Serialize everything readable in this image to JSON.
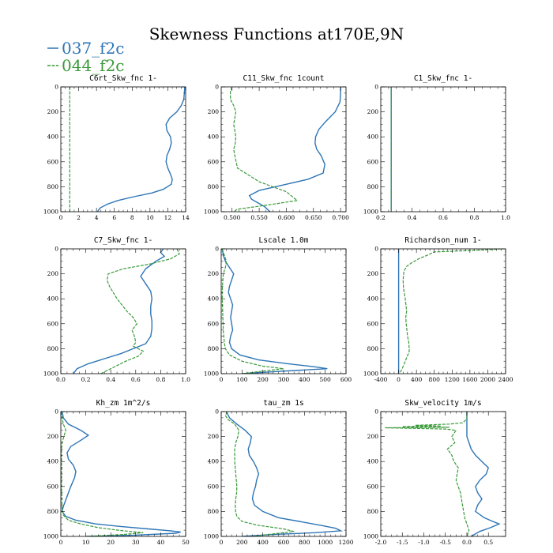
{
  "figure": {
    "title": "Skewness Functions at170E,9N",
    "legend": [
      {
        "name": "037_f2c",
        "color": "#2d75b6"
      },
      {
        "name": "044_f2c",
        "color": "#3a9a3a"
      }
    ]
  },
  "chart_data": [
    {
      "type": "line",
      "title": "C6rt_Skw_fnc   1-",
      "xlim": [
        0,
        14
      ],
      "xticks": [
        0,
        2,
        4,
        6,
        8,
        10,
        12,
        14
      ],
      "xticklabels": [
        "0",
        "2",
        "4",
        "6",
        "8",
        "10",
        "12",
        "14"
      ],
      "ylim": [
        1000,
        0
      ],
      "yticks": [
        0,
        200,
        400,
        600,
        800,
        1000
      ],
      "series": [
        {
          "x": [
            13.9,
            13.85,
            13.8,
            13.5,
            13.0,
            12.2,
            11.8,
            11.9,
            12.3,
            12.4,
            12.2,
            11.9,
            11.8,
            12.0,
            12.3,
            12.5,
            12.4,
            11.5,
            10.2,
            8.2,
            6.4,
            5.2,
            4.4,
            4.1
          ],
          "y": [
            0,
            50,
            100,
            150,
            200,
            250,
            300,
            350,
            400,
            450,
            500,
            550,
            600,
            650,
            700,
            740,
            780,
            820,
            850,
            880,
            910,
            940,
            970,
            1000
          ]
        },
        {
          "x": [
            1,
            1
          ],
          "y": [
            0,
            1000
          ]
        }
      ]
    },
    {
      "type": "line",
      "title": "C11_Skw_fnc   1count",
      "xlim": [
        0.48,
        0.71
      ],
      "xticks": [
        0.5,
        0.55,
        0.6,
        0.65,
        0.7
      ],
      "xticklabels": [
        "0.500",
        "0.550",
        "0.600",
        "0.650",
        "0.700"
      ],
      "ylim": [
        1000,
        0
      ],
      "yticks": [
        0,
        200,
        400,
        600,
        800,
        1000
      ],
      "series": [
        {
          "x": [
            0.7,
            0.7,
            0.699,
            0.69,
            0.672,
            0.66,
            0.654,
            0.653,
            0.656,
            0.664,
            0.671,
            0.668,
            0.64,
            0.59,
            0.55,
            0.532,
            0.536,
            0.548,
            0.56,
            0.57
          ],
          "y": [
            0,
            50,
            120,
            200,
            280,
            340,
            400,
            450,
            500,
            550,
            620,
            690,
            740,
            790,
            830,
            870,
            900,
            930,
            960,
            1000
          ]
        },
        {
          "x": [
            0.5,
            0.497,
            0.497,
            0.503,
            0.507,
            0.505,
            0.503,
            0.505,
            0.507,
            0.506,
            0.503,
            0.505,
            0.51,
            0.55,
            0.6,
            0.62,
            0.56,
            0.51,
            0.503
          ],
          "y": [
            0,
            40,
            100,
            150,
            200,
            250,
            300,
            350,
            400,
            450,
            500,
            550,
            650,
            760,
            840,
            910,
            950,
            980,
            1000
          ]
        }
      ]
    },
    {
      "type": "line",
      "title": "C1_Skw_fnc   1-",
      "xlim": [
        0.2,
        1.0
      ],
      "xticks": [
        0.2,
        0.4,
        0.6,
        0.8,
        1.0
      ],
      "xticklabels": [
        "0.2",
        "0.4",
        "0.6",
        "0.8",
        "1.0"
      ],
      "ylim": [
        1000,
        0
      ],
      "yticks": [
        0,
        200,
        400,
        600,
        800,
        1000
      ],
      "series": [
        {
          "x": [
            0.267,
            0.267
          ],
          "y": [
            0,
            1000
          ]
        },
        {
          "x": [
            0.267,
            0.267
          ],
          "y": [
            0,
            1000
          ]
        }
      ]
    },
    {
      "type": "line",
      "title": "C7_Skw_fnc   1-",
      "xlim": [
        0.0,
        1.0
      ],
      "xticks": [
        0.0,
        0.2,
        0.4,
        0.6,
        0.8,
        1.0
      ],
      "xticklabels": [
        "0.0",
        "0.2",
        "0.4",
        "0.6",
        "0.8",
        "1.0"
      ],
      "ylim": [
        1000,
        0
      ],
      "yticks": [
        0,
        200,
        400,
        600,
        800,
        1000
      ],
      "series": [
        {
          "x": [
            0.82,
            0.8,
            0.83,
            0.76,
            0.68,
            0.64,
            0.68,
            0.72,
            0.73,
            0.72,
            0.72,
            0.73,
            0.73,
            0.72,
            0.68,
            0.58,
            0.48,
            0.35,
            0.22,
            0.13,
            0.1
          ],
          "y": [
            0,
            30,
            60,
            100,
            160,
            220,
            280,
            340,
            400,
            460,
            520,
            580,
            640,
            700,
            760,
            800,
            840,
            880,
            920,
            960,
            1000
          ]
        },
        {
          "x": [
            0.93,
            0.95,
            0.88,
            0.72,
            0.5,
            0.38,
            0.37,
            0.39,
            0.42,
            0.45,
            0.49,
            0.53,
            0.58,
            0.61,
            0.57,
            0.59,
            0.6,
            0.58,
            0.66,
            0.62,
            0.52,
            0.42,
            0.32
          ],
          "y": [
            0,
            40,
            80,
            120,
            160,
            200,
            250,
            300,
            350,
            400,
            450,
            500,
            550,
            600,
            650,
            700,
            750,
            780,
            820,
            860,
            900,
            950,
            1000
          ]
        }
      ]
    },
    {
      "type": "line",
      "title": "Lscale   1.0m",
      "xlim": [
        0,
        600
      ],
      "xticks": [
        0,
        100,
        200,
        300,
        400,
        500,
        600
      ],
      "xticklabels": [
        "0",
        "100",
        "200",
        "300",
        "400",
        "500",
        "600"
      ],
      "ylim": [
        1000,
        0
      ],
      "yticks": [
        0,
        200,
        400,
        600,
        800,
        1000
      ],
      "series": [
        {
          "x": [
            5,
            10,
            20,
            40,
            60,
            50,
            40,
            35,
            45,
            55,
            50,
            45,
            50,
            55,
            45,
            40,
            50,
            90,
            180,
            320,
            450,
            510,
            400,
            250,
            100
          ],
          "y": [
            0,
            50,
            100,
            150,
            200,
            250,
            300,
            350,
            400,
            450,
            500,
            550,
            600,
            650,
            700,
            750,
            800,
            850,
            890,
            920,
            945,
            960,
            970,
            985,
            1000
          ]
        },
        {
          "x": [
            5,
            15,
            25,
            20,
            10,
            8,
            6,
            5,
            5,
            6,
            7,
            8,
            9,
            10,
            12,
            15,
            20,
            40,
            100,
            200,
            300,
            200,
            100
          ],
          "y": [
            0,
            50,
            100,
            150,
            200,
            250,
            300,
            350,
            400,
            450,
            500,
            550,
            600,
            650,
            700,
            750,
            800,
            850,
            900,
            940,
            960,
            980,
            1000
          ]
        }
      ]
    },
    {
      "type": "line",
      "title": "Richardson_num   1-",
      "xlim": [
        -400,
        2400
      ],
      "xticks": [
        -400,
        0,
        400,
        800,
        1200,
        1600,
        2000,
        2400
      ],
      "xticklabels": [
        "-400",
        "0",
        "400",
        "800",
        "1200",
        "1600",
        "2000",
        "2400"
      ],
      "ylim": [
        1000,
        0
      ],
      "yticks": [
        0,
        200,
        400,
        600,
        800,
        1000
      ],
      "series": [
        {
          "x": [
            0,
            0
          ],
          "y": [
            0,
            1000
          ]
        },
        {
          "x": [
            2300,
            2100,
            1500,
            800,
            650,
            450,
            300,
            180,
            120,
            100,
            110,
            150,
            180,
            160,
            170,
            200,
            230,
            240,
            150,
            80,
            20
          ],
          "y": [
            0,
            5,
            15,
            25,
            50,
            80,
            110,
            140,
            180,
            250,
            320,
            400,
            500,
            550,
            600,
            700,
            750,
            820,
            900,
            960,
            1000
          ]
        }
      ]
    },
    {
      "type": "line",
      "title": "Kh_zm   1m^2/s",
      "xlim": [
        0,
        50
      ],
      "xticks": [
        0,
        10,
        20,
        30,
        40,
        50
      ],
      "xticklabels": [
        "0",
        "10",
        "20",
        "30",
        "40",
        "50"
      ],
      "ylim": [
        1000,
        0
      ],
      "yticks": [
        0,
        200,
        400,
        600,
        800,
        1000
      ],
      "series": [
        {
          "x": [
            0.5,
            1,
            3,
            8,
            11,
            8,
            4,
            2.5,
            3,
            5,
            6,
            5.5,
            4,
            2.5,
            1,
            0.5,
            2,
            6,
            14,
            24,
            35,
            44,
            48,
            46,
            30,
            10
          ],
          "y": [
            0,
            50,
            100,
            150,
            190,
            230,
            280,
            330,
            380,
            430,
            480,
            530,
            600,
            680,
            760,
            800,
            840,
            870,
            900,
            920,
            940,
            955,
            965,
            975,
            990,
            1000
          ]
        },
        {
          "x": [
            0.3,
            0.5,
            1,
            2,
            1.2,
            0.5,
            0.3,
            0.3,
            0.3,
            0.3,
            0.4,
            0.5,
            1,
            3,
            8,
            15,
            25,
            33,
            25,
            10
          ],
          "y": [
            0,
            50,
            100,
            150,
            200,
            250,
            300,
            400,
            500,
            600,
            700,
            780,
            830,
            870,
            900,
            930,
            955,
            970,
            985,
            1000
          ]
        }
      ]
    },
    {
      "type": "line",
      "title": "tau_zm   1s",
      "xlim": [
        0,
        1200
      ],
      "xticks": [
        0,
        200,
        400,
        600,
        800,
        1000,
        1200
      ],
      "xticklabels": [
        "0",
        "200",
        "400",
        "600",
        "800",
        "1000",
        "1200"
      ],
      "ylim": [
        1000,
        0
      ],
      "yticks": [
        0,
        200,
        400,
        600,
        800,
        1000
      ],
      "series": [
        {
          "x": [
            50,
            80,
            150,
            230,
            290,
            280,
            260,
            270,
            310,
            340,
            360,
            340,
            330,
            310,
            300,
            320,
            400,
            550,
            750,
            950,
            1100,
            1150,
            900,
            500,
            200
          ],
          "y": [
            0,
            50,
            100,
            150,
            200,
            250,
            300,
            350,
            400,
            450,
            500,
            550,
            600,
            650,
            700,
            750,
            800,
            850,
            880,
            910,
            935,
            955,
            970,
            985,
            1000
          ]
        },
        {
          "x": [
            60,
            40,
            60,
            130,
            170,
            160,
            140,
            130,
            130,
            140,
            145,
            150,
            148,
            140,
            135,
            138,
            150,
            200,
            350,
            600,
            700,
            500,
            300
          ],
          "y": [
            0,
            30,
            60,
            100,
            150,
            200,
            250,
            300,
            400,
            500,
            550,
            600,
            650,
            700,
            750,
            800,
            840,
            880,
            910,
            940,
            960,
            980,
            1000
          ]
        }
      ]
    },
    {
      "type": "line",
      "title": "Skw_velocity   1m/s",
      "xlim": [
        -2.0,
        0.9
      ],
      "xticks": [
        -2.0,
        -1.5,
        -1.0,
        -0.5,
        0.0,
        0.5
      ],
      "xticklabels": [
        "-2.0",
        "-1.5",
        "-1.0",
        "-0.5",
        "0.0",
        "0.5"
      ],
      "ylim": [
        1000,
        0
      ],
      "yticks": [
        0,
        200,
        400,
        600,
        800,
        1000
      ],
      "series": [
        {
          "x": [
            0,
            0,
            0,
            0.05,
            0.1,
            0.2,
            0.35,
            0.5,
            0.45,
            0.3,
            0.2,
            0.25,
            0.35,
            0.25,
            0.2,
            0.4,
            0.6,
            0.75,
            0.55,
            0.3,
            0.1
          ],
          "y": [
            0,
            100,
            200,
            250,
            300,
            350,
            400,
            450,
            500,
            550,
            600,
            650,
            700,
            750,
            800,
            850,
            880,
            900,
            930,
            960,
            1000
          ]
        },
        {
          "x": [
            0,
            0,
            -0.1,
            -0.4,
            -0.8,
            -1.2,
            -0.6,
            -1.5,
            -0.4,
            -1.9,
            -0.5,
            -0.25,
            -0.35,
            -0.28,
            -0.45,
            -0.35,
            -0.3,
            -0.2,
            -0.25,
            -0.15,
            -0.1,
            -0.05,
            0.05,
            0
          ],
          "y": [
            0,
            60,
            90,
            100,
            105,
            110,
            115,
            120,
            125,
            130,
            140,
            150,
            200,
            250,
            300,
            350,
            400,
            450,
            550,
            650,
            750,
            850,
            950,
            1000
          ]
        }
      ]
    }
  ]
}
